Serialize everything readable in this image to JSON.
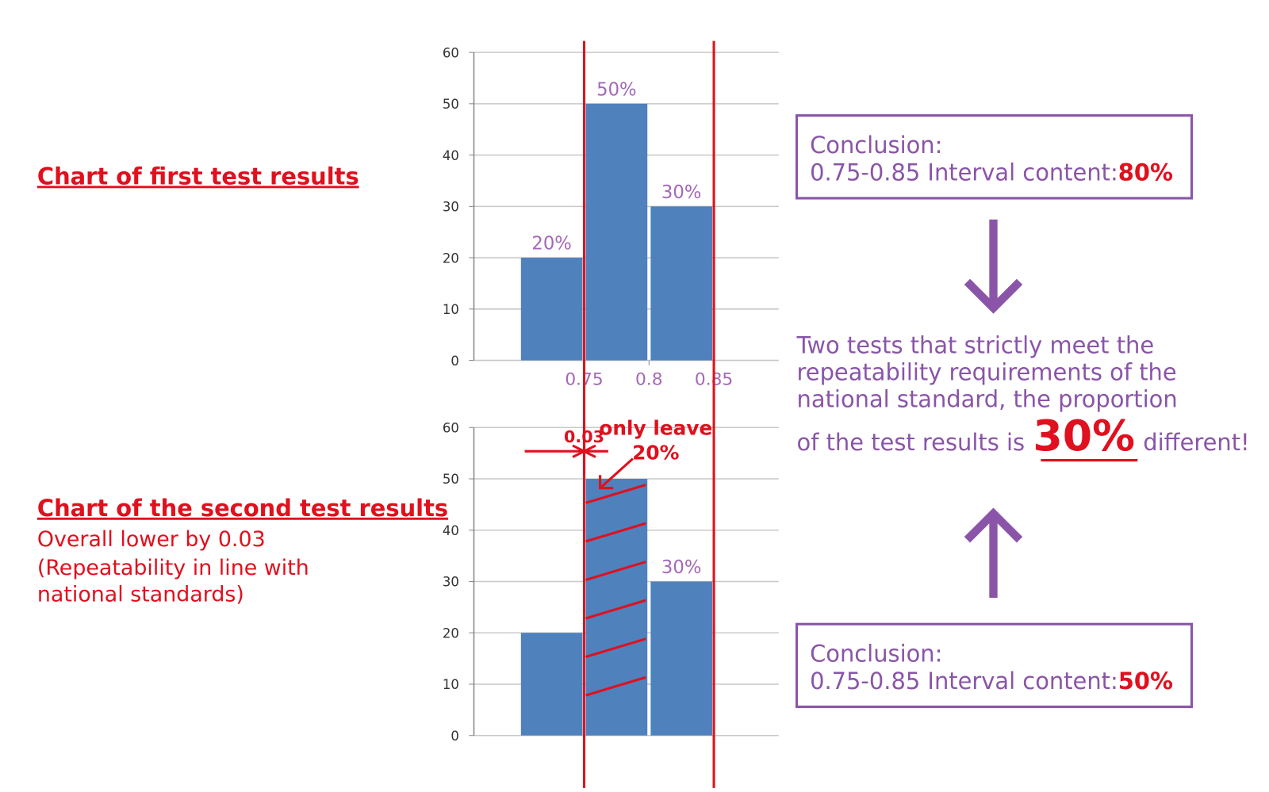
{
  "chart_data": [
    {
      "type": "histogram",
      "bins": [
        0.7,
        0.75,
        0.8,
        0.85
      ],
      "values": [
        20,
        50,
        30
      ],
      "value_labels": [
        "20%",
        "50%",
        "30%"
      ],
      "color": "#4f81bd",
      "xlim": [
        0.665,
        0.9
      ],
      "ylim": [
        0,
        60
      ],
      "yticks": [
        0,
        10,
        20,
        30,
        40,
        50,
        60
      ],
      "xticks": [
        0.75,
        0.8,
        0.85
      ],
      "reference_lines": [
        0.75,
        0.85
      ],
      "reference_color": "#d9161e",
      "grid": true
    },
    {
      "type": "histogram",
      "bins": [
        0.67,
        0.72,
        0.77,
        0.82
      ],
      "values": [
        20,
        50,
        30
      ],
      "value_labels": [
        null,
        null,
        "30%"
      ],
      "color": "#4f81bd",
      "xlim": [
        0.635,
        0.87
      ],
      "ylim": [
        0,
        60
      ],
      "yticks": [
        0,
        10,
        20,
        30,
        40,
        50,
        60
      ],
      "grid": true,
      "annotations": [
        "0.03",
        "only leave",
        "20%"
      ]
    }
  ],
  "labels": {
    "first": "Chart of first test results",
    "second": "Chart of the second test results",
    "second_notes": [
      "Overall lower by 0.03",
      "(Repeatability in line with",
      "national standards)"
    ]
  },
  "conclusions": [
    {
      "title": "Conclusion:",
      "text": "0.75-0.85 Interval content:",
      "value": "80%"
    },
    {
      "title": "Conclusion:",
      "text": "0.75-0.85 Interval content:",
      "value": "50%"
    }
  ],
  "summary": {
    "lines": [
      "Two tests that strictly meet the",
      "repeatability requirements of the",
      "national standard, the proportion"
    ],
    "last_before": "of the test results is",
    "highlight": "30%",
    "last_after": "different!"
  }
}
